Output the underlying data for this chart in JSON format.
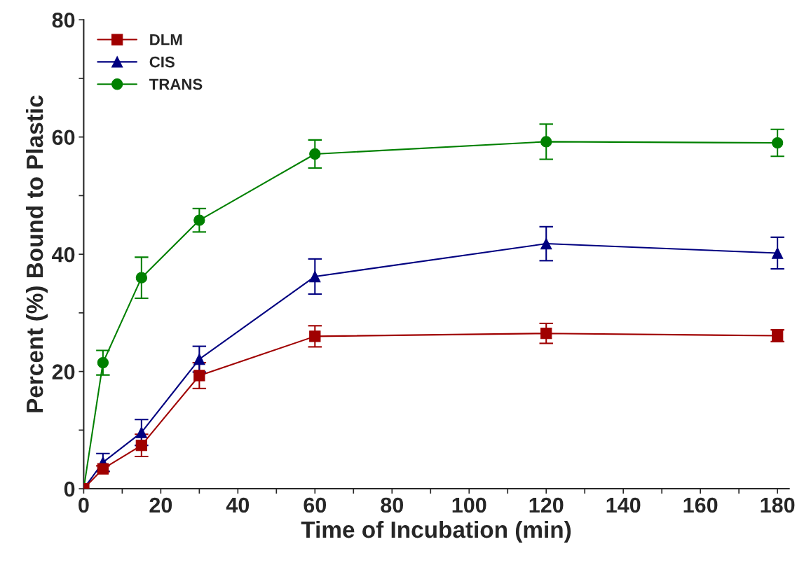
{
  "chart_data": {
    "type": "line",
    "xlabel": "Time of Incubation (min)",
    "ylabel": "Percent (%) Bound to Plastic",
    "x": [
      0,
      5,
      15,
      30,
      60,
      120,
      180
    ],
    "series": [
      {
        "name": "DLM",
        "color": "#a00000",
        "marker": "square",
        "values": [
          0,
          3.4,
          7.4,
          19.3,
          26.0,
          26.5,
          26.1
        ],
        "errors": [
          null,
          0.5,
          1.9,
          2.2,
          1.8,
          1.7,
          1.0
        ]
      },
      {
        "name": "CIS",
        "color": "#000080",
        "marker": "triangle",
        "values": [
          0,
          4.5,
          9.6,
          22.1,
          36.2,
          41.8,
          40.2
        ],
        "errors": [
          null,
          1.5,
          2.2,
          2.2,
          3.0,
          2.9,
          2.7
        ]
      },
      {
        "name": "TRANS",
        "color": "#008000",
        "marker": "circle",
        "values": [
          0,
          21.5,
          36.0,
          45.8,
          57.1,
          59.2,
          59.0
        ],
        "errors": [
          null,
          2.1,
          3.5,
          2.0,
          2.4,
          3.0,
          2.3
        ]
      }
    ],
    "xlim": [
      0,
      183
    ],
    "ylim": [
      0,
      80
    ],
    "xticks": [
      0,
      {
        "value": 10,
        "label": null
      },
      20,
      {
        "value": 30,
        "label": null
      },
      40,
      {
        "value": 50,
        "label": null
      },
      60,
      {
        "value": 70,
        "label": null
      },
      80,
      {
        "value": 90,
        "label": null
      },
      100,
      {
        "value": 110,
        "label": null
      },
      120,
      {
        "value": 130,
        "label": null
      },
      140,
      {
        "value": 150,
        "label": null
      },
      160,
      {
        "value": 170,
        "label": null
      },
      180
    ],
    "yticks": [
      0,
      {
        "value": 10,
        "label": null
      },
      20,
      {
        "value": 30,
        "label": null
      },
      40,
      {
        "value": 50,
        "label": null
      },
      60,
      {
        "value": 70,
        "label": null
      },
      80
    ],
    "legend": "top left",
    "grid": false,
    "line_style": "solid"
  }
}
